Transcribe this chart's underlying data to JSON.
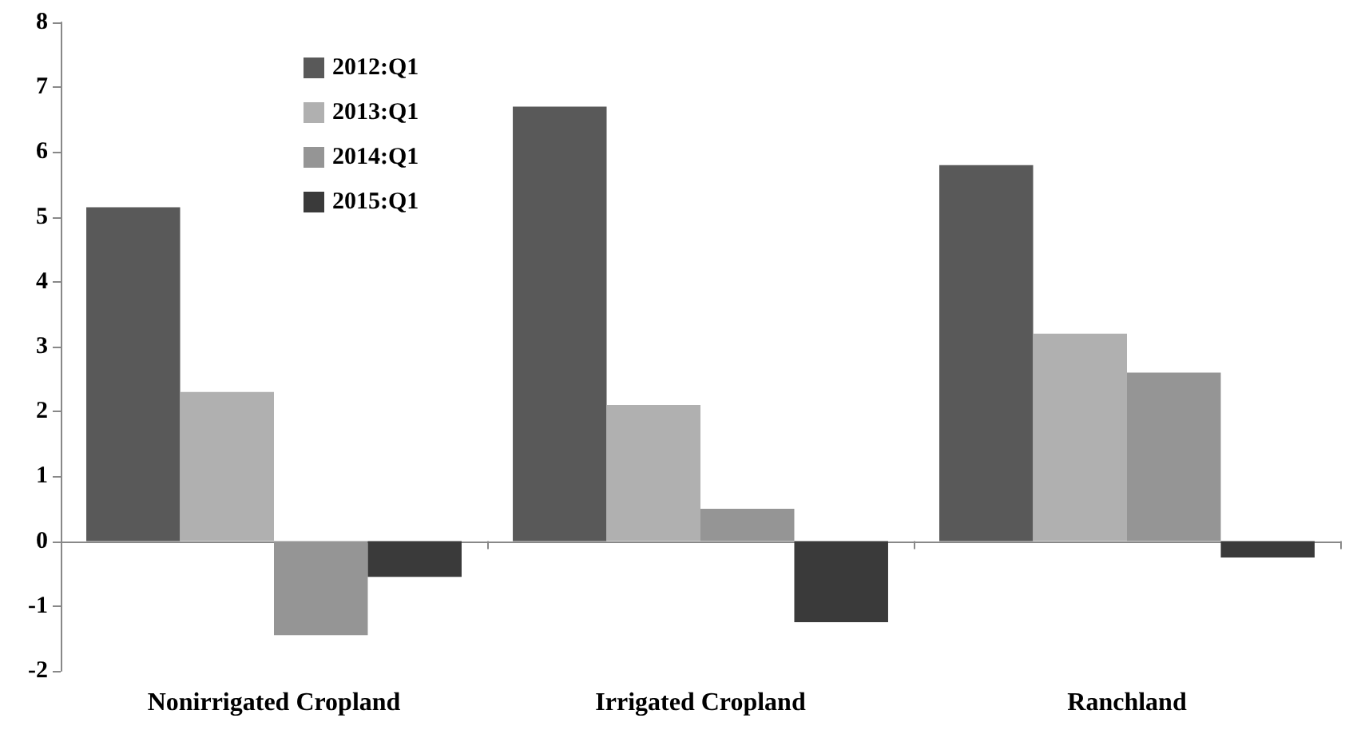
{
  "chart_data": {
    "type": "bar",
    "categories": [
      "Nonirrigated Cropland",
      "Irrigated Cropland",
      "Ranchland"
    ],
    "series": [
      {
        "name": "2012:Q1",
        "color": "#595959",
        "values": [
          5.15,
          6.7,
          5.8
        ]
      },
      {
        "name": "2013:Q1",
        "color": "#b0b0b0",
        "values": [
          2.3,
          2.1,
          3.2
        ]
      },
      {
        "name": "2014:Q1",
        "color": "#959595",
        "values": [
          -1.45,
          0.5,
          2.6
        ]
      },
      {
        "name": "2015:Q1",
        "color": "#3a3a3a",
        "values": [
          -0.55,
          -1.25,
          -0.25
        ]
      }
    ],
    "ylim": [
      -2,
      8
    ],
    "yticks": [
      -2,
      -1,
      0,
      1,
      2,
      3,
      4,
      5,
      6,
      7,
      8
    ],
    "legend": "top left"
  }
}
